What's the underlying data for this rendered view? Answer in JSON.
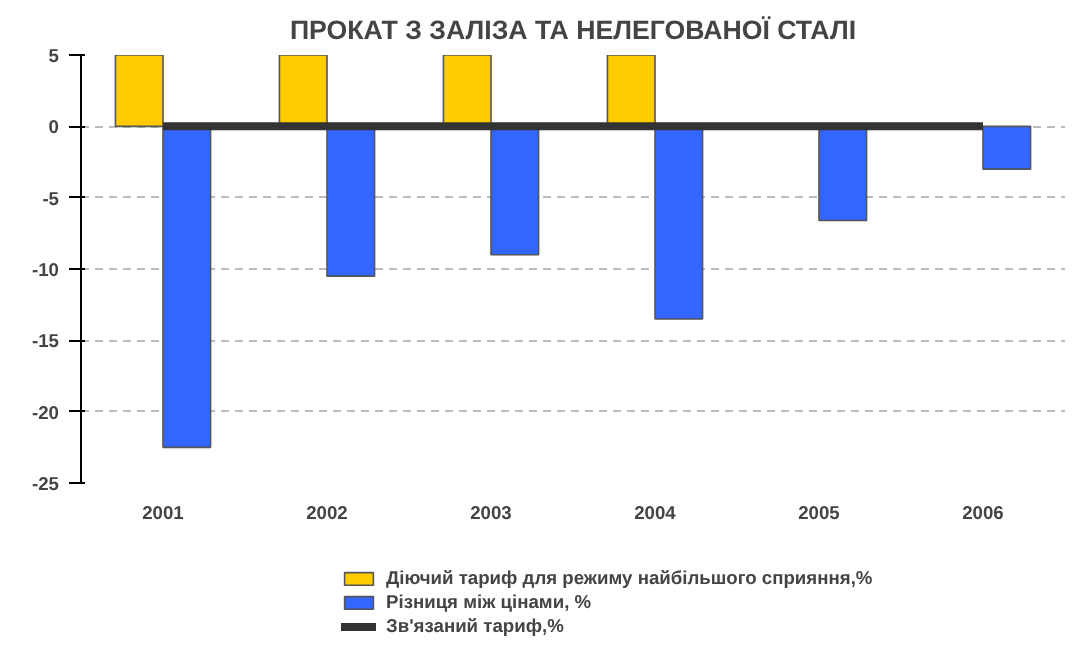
{
  "chart_data": {
    "type": "bar",
    "title": "ПРОКАТ З ЗАЛІЗА ТА НЕЛЕГОВАНОЇ СТАЛІ",
    "categories": [
      "2001",
      "2002",
      "2003",
      "2004",
      "2005",
      "2006"
    ],
    "series": [
      {
        "name": "Діючий тариф для режиму найбільшого сприяння,%",
        "color": "#ffcc00",
        "values": [
          5,
          5,
          5,
          5,
          null,
          null
        ]
      },
      {
        "name": "Різниця між цінами, %",
        "color": "#3366ff",
        "values": [
          -22.5,
          -10.5,
          -9,
          -13.5,
          -6.6,
          -3
        ]
      },
      {
        "name": "Зв'язаний тариф,%",
        "type": "line",
        "color": "#333333",
        "values": [
          0,
          0,
          0,
          0,
          0,
          0
        ]
      }
    ],
    "ylim": [
      -25,
      5
    ],
    "yticks": [
      -25,
      -20,
      -15,
      -10,
      -5,
      0,
      5
    ],
    "grid": "y",
    "legend": "bottom",
    "line_style": "solid"
  }
}
